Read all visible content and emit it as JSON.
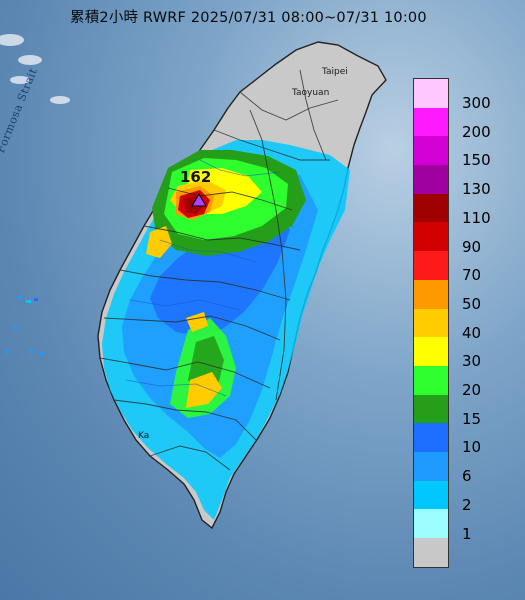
{
  "title": "累積2小時 RWRF 2025/07/31 08:00~07/31 10:00",
  "places": {
    "taipei": "Taipei",
    "taoyuan": "Taoyuan",
    "strait": "Formosa Strait",
    "k": "Ka"
  },
  "max_value": "162",
  "legend": {
    "items": [
      {
        "label": "300",
        "color": "#ffc6ff"
      },
      {
        "label": "200",
        "color": "#ff19ff"
      },
      {
        "label": "150",
        "color": "#d200d2"
      },
      {
        "label": "130",
        "color": "#a0009f"
      },
      {
        "label": "110",
        "color": "#a00000"
      },
      {
        "label": "90",
        "color": "#d20000"
      },
      {
        "label": "70",
        "color": "#ff1a1a"
      },
      {
        "label": "50",
        "color": "#ff9900"
      },
      {
        "label": "40",
        "color": "#ffcc00"
      },
      {
        "label": "30",
        "color": "#ffff00"
      },
      {
        "label": "20",
        "color": "#2efe2e"
      },
      {
        "label": "15",
        "color": "#259f1a"
      },
      {
        "label": "10",
        "color": "#1e6eff"
      },
      {
        "label": "6",
        "color": "#1f9bff"
      },
      {
        "label": "2",
        "color": "#00c8ff"
      },
      {
        "label": "1",
        "color": "#9cffff"
      },
      {
        "label": "",
        "color": "#c8c8c8"
      }
    ]
  }
}
